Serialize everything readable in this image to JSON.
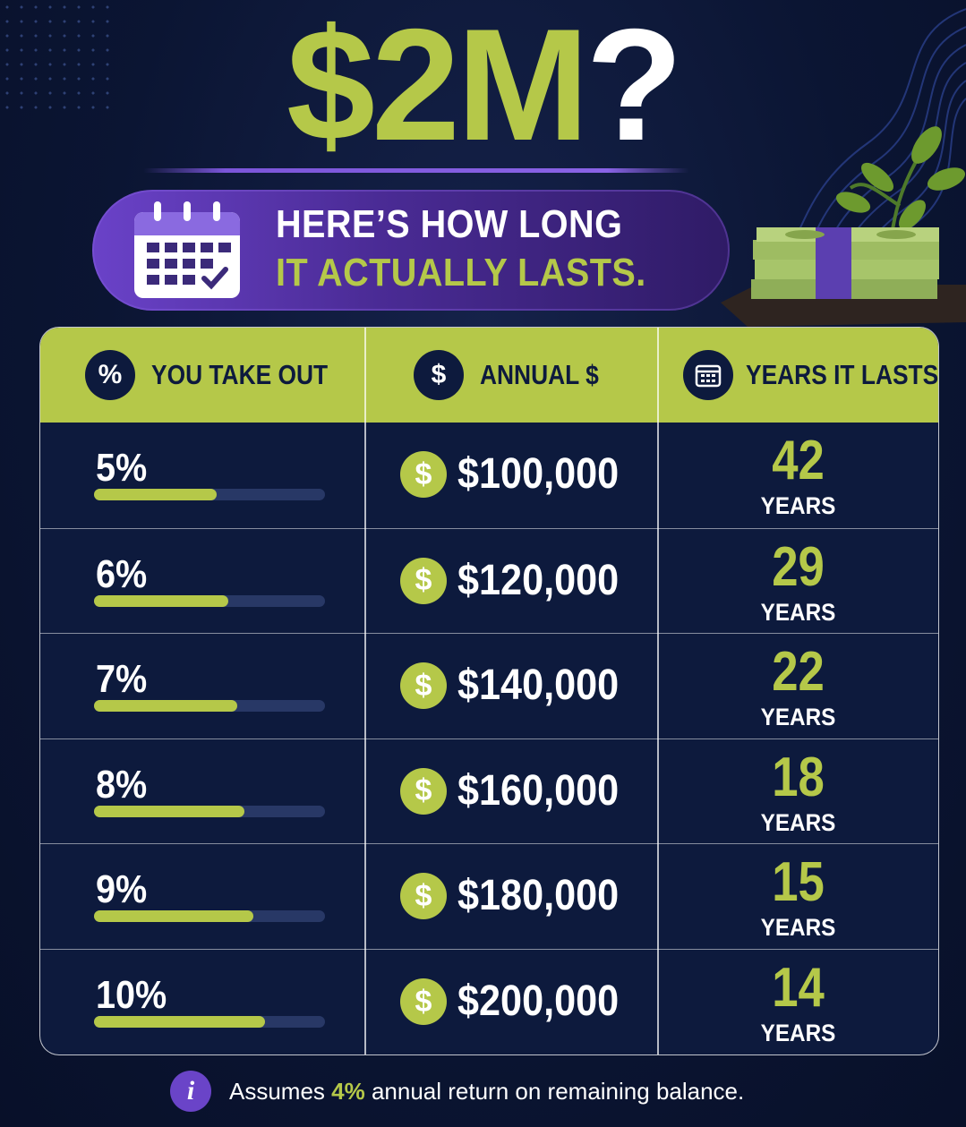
{
  "headline": {
    "amount": "$2M",
    "question_mark": "?"
  },
  "subtitle": {
    "line1": "HERE’S HOW LONG",
    "line2": "IT ACTUALLY LASTS."
  },
  "table": {
    "headers": [
      {
        "icon": "%",
        "label": "YOU TAKE OUT"
      },
      {
        "icon": "$",
        "label": "ANNUAL $"
      },
      {
        "icon": "calendar-icon",
        "label": "YEARS IT LASTS"
      }
    ],
    "rows": [
      {
        "percent": "5%",
        "bar_fraction": 0.53,
        "annual": "$100,000",
        "dollar_icon": "$",
        "years": "42",
        "unit": "YEARS"
      },
      {
        "percent": "6%",
        "bar_fraction": 0.58,
        "annual": "$120,000",
        "dollar_icon": "$",
        "years": "29",
        "unit": "YEARS"
      },
      {
        "percent": "7%",
        "bar_fraction": 0.62,
        "annual": "$140,000",
        "dollar_icon": "$",
        "years": "22",
        "unit": "YEARS"
      },
      {
        "percent": "8%",
        "bar_fraction": 0.65,
        "annual": "$160,000",
        "dollar_icon": "$",
        "years": "18",
        "unit": "YEARS"
      },
      {
        "percent": "9%",
        "bar_fraction": 0.69,
        "annual": "$180,000",
        "dollar_icon": "$",
        "years": "15",
        "unit": "YEARS"
      },
      {
        "percent": "10%",
        "bar_fraction": 0.74,
        "annual": "$200,000",
        "dollar_icon": "$",
        "years": "14",
        "unit": "YEARS"
      }
    ]
  },
  "footnote": {
    "info_icon": "i",
    "before": "Assumes ",
    "highlight": "4%",
    "after": " annual return on remaining balance."
  },
  "colors": {
    "background": "#0b1533",
    "accent": "#b5c849",
    "purple": "#6a42c8"
  }
}
